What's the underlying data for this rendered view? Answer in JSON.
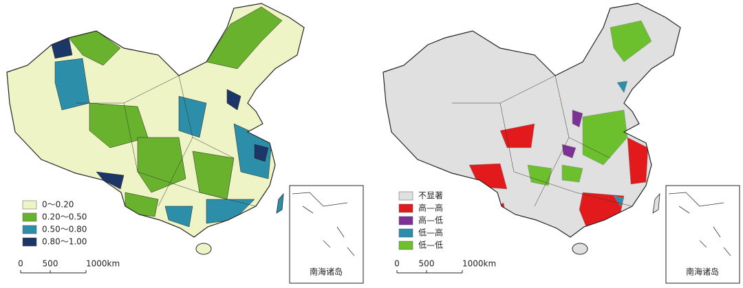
{
  "maps": [
    {
      "legend": {
        "items": [
          {
            "label": "0～0.20",
            "color": "#eef4c6"
          },
          {
            "label": "0.20～0.50",
            "color": "#69b22e"
          },
          {
            "label": "0.50～0.80",
            "color": "#2c8ea8"
          },
          {
            "label": "0.80～1.00",
            "color": "#1c3767"
          }
        ]
      },
      "scale": {
        "ticks": [
          "0",
          "500",
          "1000km"
        ]
      },
      "inset": {
        "label": "南海诸岛"
      }
    },
    {
      "legend": {
        "items": [
          {
            "label": "不显著",
            "color": "#e0e0e0"
          },
          {
            "label": "高—高",
            "color": "#e31a1c"
          },
          {
            "label": "高—低",
            "color": "#7b3294"
          },
          {
            "label": "低—高",
            "color": "#2c8ea8"
          },
          {
            "label": "低—低",
            "color": "#6cc02e"
          }
        ]
      },
      "scale": {
        "ticks": [
          "0",
          "500",
          "1000km"
        ]
      },
      "inset": {
        "label": "南海诸岛"
      }
    }
  ]
}
